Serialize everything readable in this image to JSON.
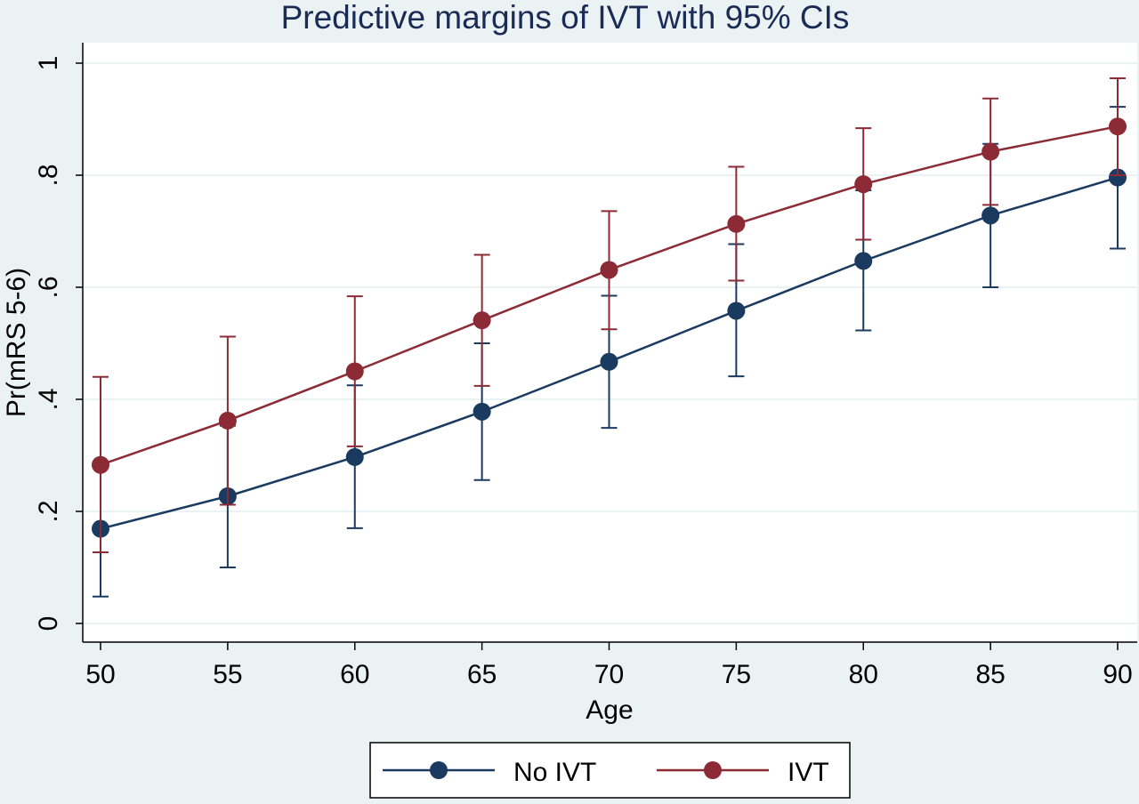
{
  "colors": {
    "background": "#eaf2f3",
    "plot_background": "#ffffff",
    "grid": "#eaf2f3",
    "title": "#1a2c55",
    "axis": "#000000",
    "no_ivt": "#1b3a60",
    "ivt": "#8c2a35"
  },
  "chart_data": {
    "type": "line",
    "title": "Predictive margins of IVT with 95% CIs",
    "xlabel": "Age",
    "ylabel": "Pr(mRS 5-6)",
    "xlim": [
      50,
      90
    ],
    "ylim": [
      0,
      1
    ],
    "x": [
      50,
      55,
      60,
      65,
      70,
      75,
      80,
      85,
      90
    ],
    "x_tick_labels": [
      "50",
      "55",
      "60",
      "65",
      "70",
      "75",
      "80",
      "85",
      "90"
    ],
    "y_ticks": [
      0,
      0.2,
      0.4,
      0.6,
      0.8,
      1
    ],
    "y_tick_labels": [
      "0",
      ".2",
      ".4",
      ".6",
      ".8",
      "1"
    ],
    "grid": true,
    "legend_position": "bottom",
    "series": [
      {
        "name": "No IVT",
        "values": [
          0.169,
          0.227,
          0.297,
          0.378,
          0.467,
          0.558,
          0.647,
          0.728,
          0.796
        ],
        "ci_lower": [
          0.048,
          0.1,
          0.17,
          0.256,
          0.349,
          0.441,
          0.523,
          0.6,
          0.669
        ],
        "ci_upper": [
          0.289,
          0.353,
          0.425,
          0.5,
          0.585,
          0.677,
          0.773,
          0.856,
          0.922
        ]
      },
      {
        "name": "IVT",
        "values": [
          0.283,
          0.362,
          0.45,
          0.541,
          0.631,
          0.713,
          0.784,
          0.842,
          0.887
        ],
        "ci_lower": [
          0.127,
          0.212,
          0.316,
          0.424,
          0.525,
          0.612,
          0.685,
          0.747,
          0.8
        ],
        "ci_upper": [
          0.44,
          0.512,
          0.584,
          0.658,
          0.736,
          0.815,
          0.884,
          0.937,
          0.973
        ]
      }
    ]
  }
}
